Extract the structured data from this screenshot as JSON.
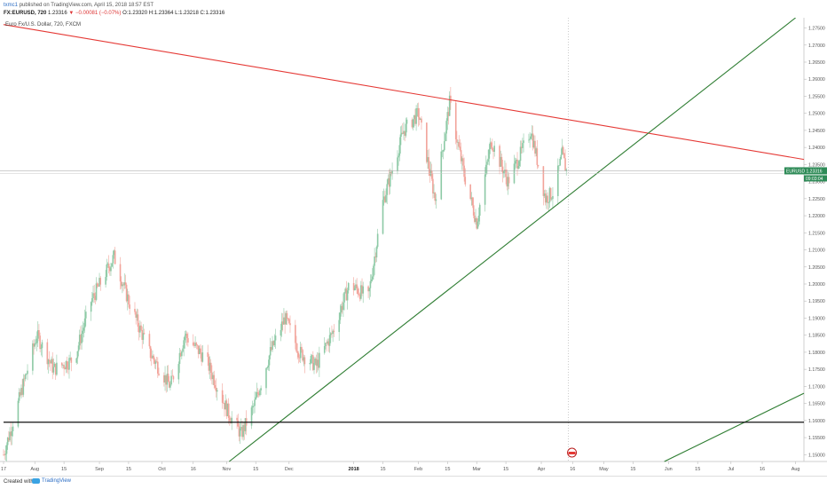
{
  "header": {
    "author": "txmc1",
    "published": "published on TradingView.com, April 15, 2018 18:57 EST",
    "symbol": "FX:EURUSD, 720",
    "price": "1.23316",
    "change": "▼ −0.00081 (−0.07%)",
    "ohlc": "O:1.23320 H:1.23364 L:1.23218 C:1.23316"
  },
  "legend": "Euro Fx/U.S. Dollar, 720, FXCM",
  "footer": {
    "created": "Created with",
    "brand": "TradingView"
  },
  "colors": {
    "red_trend": "#e53935",
    "green_trend": "#2e7d32",
    "black_line": "#111111",
    "candle_up": "#8cc9a5",
    "candle_down": "#f2a39a",
    "price_label": "#2e8b57"
  },
  "chart_data": {
    "type": "candlestick",
    "symbol": "FX:EURUSD",
    "interval": "720",
    "ylim": [
      1.148,
      1.278
    ],
    "y_ticks": [
      "1.27500",
      "1.27000",
      "1.26500",
      "1.26000",
      "1.25500",
      "1.25000",
      "1.24500",
      "1.24000",
      "1.23500",
      "1.23000",
      "1.22500",
      "1.22000",
      "1.21500",
      "1.21000",
      "1.20500",
      "1.20000",
      "1.19500",
      "1.19000",
      "1.18500",
      "1.18000",
      "1.17500",
      "1.17000",
      "1.16500",
      "1.16000",
      "1.15500",
      "1.15000"
    ],
    "x_ticks": [
      "17",
      "Aug",
      "15",
      "Sep",
      "15",
      "Oct",
      "16",
      "Nov",
      "15",
      "Dec",
      "2018",
      "15",
      "Feb",
      "15",
      "Mar",
      "15",
      "Apr",
      "16",
      "May",
      "15",
      "Jun",
      "15",
      "Jul",
      "16",
      "Aug"
    ],
    "x_tick_dates": [
      "2017-07-17",
      "2017-08-01",
      "2017-08-15",
      "2017-09-01",
      "2017-09-15",
      "2017-10-01",
      "2017-10-16",
      "2017-11-01",
      "2017-11-15",
      "2017-12-01",
      "2018-01-01",
      "2018-01-15",
      "2018-02-01",
      "2018-02-15",
      "2018-03-01",
      "2018-03-15",
      "2018-04-01",
      "2018-04-16",
      "2018-05-01",
      "2018-05-15",
      "2018-06-01",
      "2018-06-15",
      "2018-07-01",
      "2018-07-16",
      "2018-08-01"
    ],
    "last_price_label": "EURUSD",
    "last_price": "1.23316",
    "last_countdown": "09:03:04",
    "price_key_points": [
      [
        "2017-07-17",
        1.15
      ],
      [
        "2017-07-24",
        1.165
      ],
      [
        "2017-08-02",
        1.185
      ],
      [
        "2017-08-10",
        1.175
      ],
      [
        "2017-08-20",
        1.178
      ],
      [
        "2017-08-28",
        1.195
      ],
      [
        "2017-09-08",
        1.208
      ],
      [
        "2017-09-15",
        1.195
      ],
      [
        "2017-09-25",
        1.18
      ],
      [
        "2017-10-05",
        1.17
      ],
      [
        "2017-10-12",
        1.185
      ],
      [
        "2017-10-22",
        1.178
      ],
      [
        "2017-11-02",
        1.162
      ],
      [
        "2017-11-08",
        1.156
      ],
      [
        "2017-11-14",
        1.164
      ],
      [
        "2017-11-22",
        1.18
      ],
      [
        "2017-11-29",
        1.19
      ],
      [
        "2017-12-06",
        1.18
      ],
      [
        "2017-12-14",
        1.176
      ],
      [
        "2017-12-22",
        1.186
      ],
      [
        "2017-12-30",
        1.2
      ],
      [
        "2018-01-08",
        1.196
      ],
      [
        "2018-01-15",
        1.224
      ],
      [
        "2018-01-25",
        1.245
      ],
      [
        "2018-02-01",
        1.25
      ],
      [
        "2018-02-09",
        1.225
      ],
      [
        "2018-02-16",
        1.253
      ],
      [
        "2018-02-23",
        1.232
      ],
      [
        "2018-03-01",
        1.218
      ],
      [
        "2018-03-08",
        1.242
      ],
      [
        "2018-03-16",
        1.23
      ],
      [
        "2018-03-22",
        1.238
      ],
      [
        "2018-03-27",
        1.245
      ],
      [
        "2018-04-03",
        1.225
      ],
      [
        "2018-04-07",
        1.227
      ],
      [
        "2018-04-11",
        1.238
      ],
      [
        "2018-04-13",
        1.2332
      ]
    ],
    "trendlines": [
      {
        "name": "resistance",
        "color": "red",
        "points": [
          [
            "2017-07-17",
            1.276
          ],
          [
            "2018-08-05",
            1.2365
          ]
        ]
      },
      {
        "name": "support",
        "color": "green",
        "points": [
          [
            "2017-10-27",
            1.145
          ],
          [
            "2018-08-01",
            1.278
          ]
        ]
      },
      {
        "name": "lower-channel",
        "color": "green",
        "points": [
          [
            "2018-05-20",
            1.145
          ],
          [
            "2018-08-05",
            1.168
          ]
        ]
      },
      {
        "name": "horizontal-support",
        "color": "black",
        "points": [
          [
            "2017-07-17",
            1.1595
          ],
          [
            "2018-08-05",
            1.1595
          ]
        ]
      }
    ]
  }
}
